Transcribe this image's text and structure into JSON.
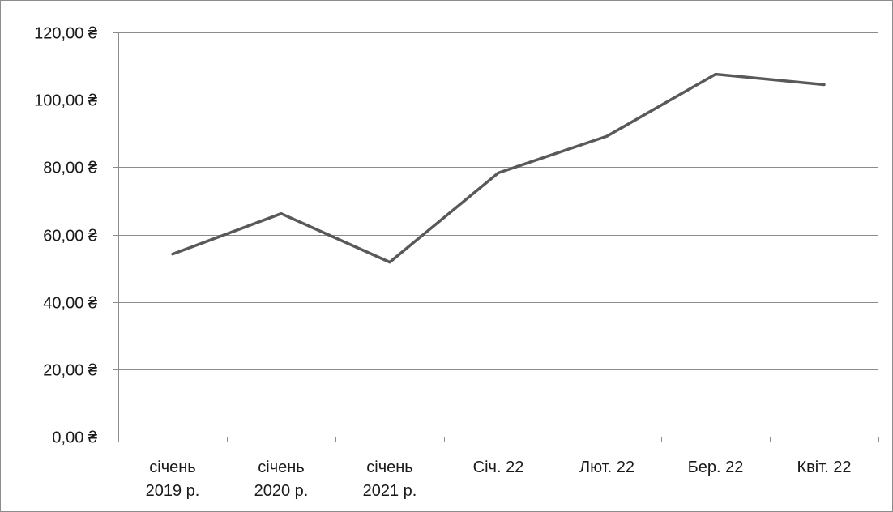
{
  "chart_data": {
    "type": "line",
    "title": "",
    "xlabel": "",
    "ylabel": "",
    "categories": [
      [
        "січень",
        "2019 р."
      ],
      [
        "січень",
        "2020 р."
      ],
      [
        "січень",
        "2021 р."
      ],
      [
        "Січ. 22"
      ],
      [
        "Лют. 22"
      ],
      [
        "Бер. 22"
      ],
      [
        "Квіт. 22"
      ]
    ],
    "series": [
      {
        "values": [
          54.2,
          66.2,
          51.8,
          78.3,
          89.2,
          107.6,
          104.5
        ],
        "color": "#595959"
      }
    ],
    "ylim": [
      0,
      120
    ],
    "yticks": [
      {
        "value": 0,
        "label": "0,00 ₴"
      },
      {
        "value": 20,
        "label": "20,00 ₴"
      },
      {
        "value": 40,
        "label": "40,00 ₴"
      },
      {
        "value": 60,
        "label": "60,00 ₴"
      },
      {
        "value": 80,
        "label": "80,00 ₴"
      },
      {
        "value": 100,
        "label": "100,00 ₴"
      },
      {
        "value": 120,
        "label": "120,00 ₴"
      }
    ],
    "grid": true,
    "gridline_color": "#8c8c8c",
    "legend": "none"
  }
}
